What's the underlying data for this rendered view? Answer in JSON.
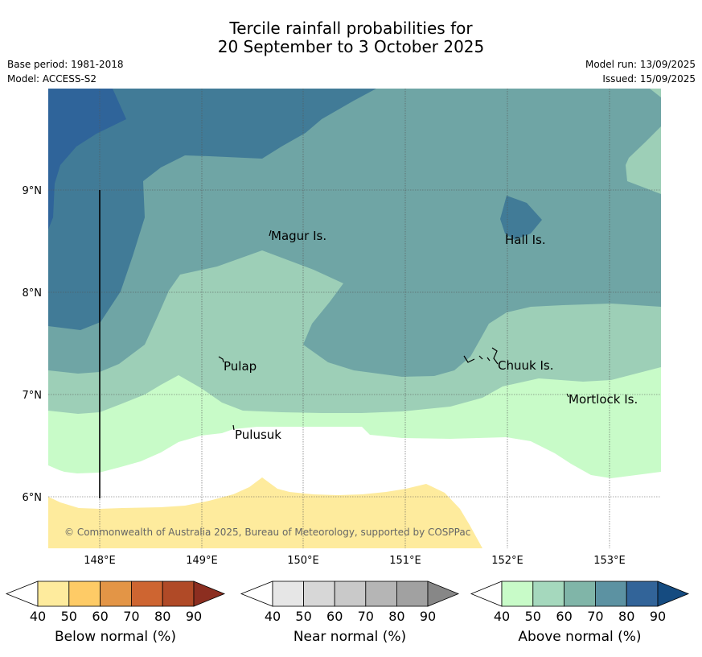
{
  "title": {
    "line1": "Tercile rainfall probabilities for",
    "line2": "20 September to 3 October 2025"
  },
  "meta": {
    "base_period": "Base period: 1981-2018",
    "model": "Model: ACCESS-S2",
    "model_run": "Model run: 13/09/2025",
    "issued": "Issued: 15/09/2025"
  },
  "map": {
    "lat_labels": [
      "9°N",
      "8°N",
      "7°N",
      "6°N"
    ],
    "lon_labels": [
      "148°E",
      "149°E",
      "150°E",
      "151°E",
      "152°E",
      "153°E"
    ],
    "places": [
      "Magur Is.",
      "Hall Is.",
      "Pulap",
      "Chuuk Is.",
      "Mortlock Is.",
      "Pulusuk"
    ],
    "copyright": "© Commonwealth of Australia 2025, Bureau of Meteorology, supported by COSPPac",
    "colors": {
      "above_50_60": "#9dcfb7",
      "above_60_70": "#6fa5a5",
      "above_70_80": "#417b97",
      "above_80_90": "#2f649a",
      "above_40_50": "#c8fbc8",
      "below_40_50": "#feeb9d",
      "none": "#ffffff"
    }
  },
  "legend": {
    "below": {
      "label": "Below normal (%)",
      "ticks": [
        "40",
        "50",
        "60",
        "70",
        "80",
        "90"
      ],
      "colors": [
        "#ffffff",
        "#feeb9d",
        "#fecb66",
        "#e39546",
        "#ce6531",
        "#b04a27",
        "#8c2e20"
      ]
    },
    "near": {
      "label": "Near normal (%)",
      "ticks": [
        "40",
        "50",
        "60",
        "70",
        "80",
        "90"
      ],
      "colors": [
        "#ffffff",
        "#e6e6e6",
        "#d7d7d7",
        "#c9c9c9",
        "#b5b5b5",
        "#a1a1a1",
        "#878787"
      ]
    },
    "above": {
      "label": "Above normal (%)",
      "ticks": [
        "40",
        "50",
        "60",
        "70",
        "80",
        "90"
      ],
      "colors": [
        "#ffffff",
        "#c8fbc8",
        "#a5d8bd",
        "#80b5a8",
        "#5c92a2",
        "#326499",
        "#154b80"
      ]
    }
  }
}
